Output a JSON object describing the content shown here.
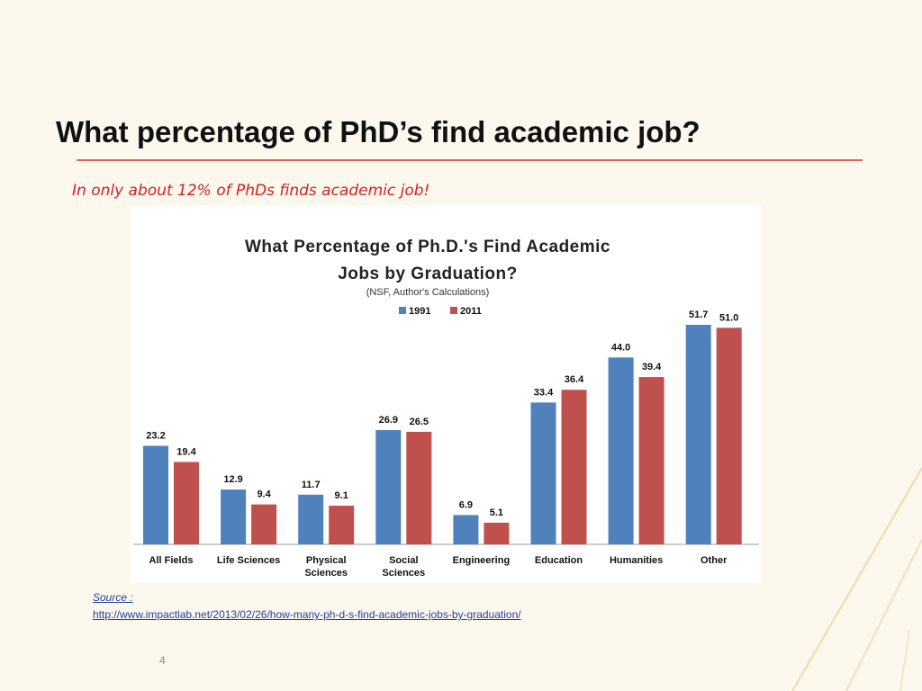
{
  "slide": {
    "title": "What percentage of PhD’s find academic job?",
    "subtitle": "In only about 12% of PhDs finds academic job!",
    "source_label": "Source :",
    "source_url": "http://www.impactlab.net/2013/02/26/how-many-ph-d-s-find-academic-jobs-by-graduation/",
    "page_number": "4"
  },
  "chart_data": {
    "type": "bar",
    "title": "What Percentage of Ph.D.'s Find Academic Jobs by Graduation?",
    "subtitle": "(NSF, Author's Calculations)",
    "categories": [
      "All Fields",
      "Life Sciences",
      "Physical Sciences",
      "Social Sciences",
      "Engineering",
      "Education",
      "Humanities",
      "Other"
    ],
    "series": [
      {
        "name": "1991",
        "color": "#4f81bd",
        "values": [
          23.2,
          12.9,
          11.7,
          26.9,
          6.9,
          33.4,
          44.0,
          51.7
        ],
        "value_labels": [
          "23.2",
          "12.9",
          "11.7",
          "26.9",
          "6.9",
          "33.4",
          "44.0",
          "51.7"
        ]
      },
      {
        "name": "2011",
        "color": "#c0504d",
        "values": [
          19.4,
          9.4,
          9.1,
          26.5,
          5.1,
          36.4,
          39.4,
          51.0
        ],
        "value_labels": [
          "19.4",
          "9.4",
          "9.1",
          "26.5",
          "5.1",
          "36.4",
          "39.4",
          "51.0"
        ]
      }
    ],
    "legend": "top"
  }
}
